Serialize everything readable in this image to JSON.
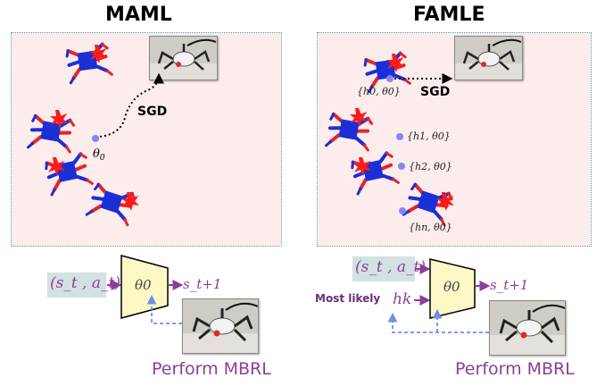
{
  "maml": {
    "title": "MAML",
    "sgd_label": "SGD",
    "theta_label": "θ0",
    "input_label": "(s_t , a_t)",
    "model_label": "θ0",
    "output_label": "s_t+1",
    "caption": "Perform MBRL"
  },
  "famle": {
    "title": "FAMLE",
    "sgd_label": "SGD",
    "embeddings": [
      "{h0, θ0}",
      "{h1, θ0}",
      "{h2, θ0}",
      "{hn, θ0}"
    ],
    "input_label": "(s_t , a_t)",
    "most_likely_label": "Most likely",
    "hk_label": "hk",
    "model_label": "θ0",
    "output_label": "s_t+1",
    "caption": "Perform MBRL"
  },
  "colors": {
    "panel_bg": "#fdecec",
    "panel_border": "#4fb0a8",
    "robot_body": "#1a2fd6",
    "robot_leg_red": "#e3262a",
    "burst": "#ff1a1a",
    "point": "#7f89f5",
    "purple": "#8a3f9a",
    "model_fill": "#fdf8c4",
    "input_bg": "#cfdede",
    "dashed": "#6f8fe8"
  },
  "icons": [
    "hexapod-robot-icon",
    "damage-burst-icon",
    "robot-photo"
  ]
}
